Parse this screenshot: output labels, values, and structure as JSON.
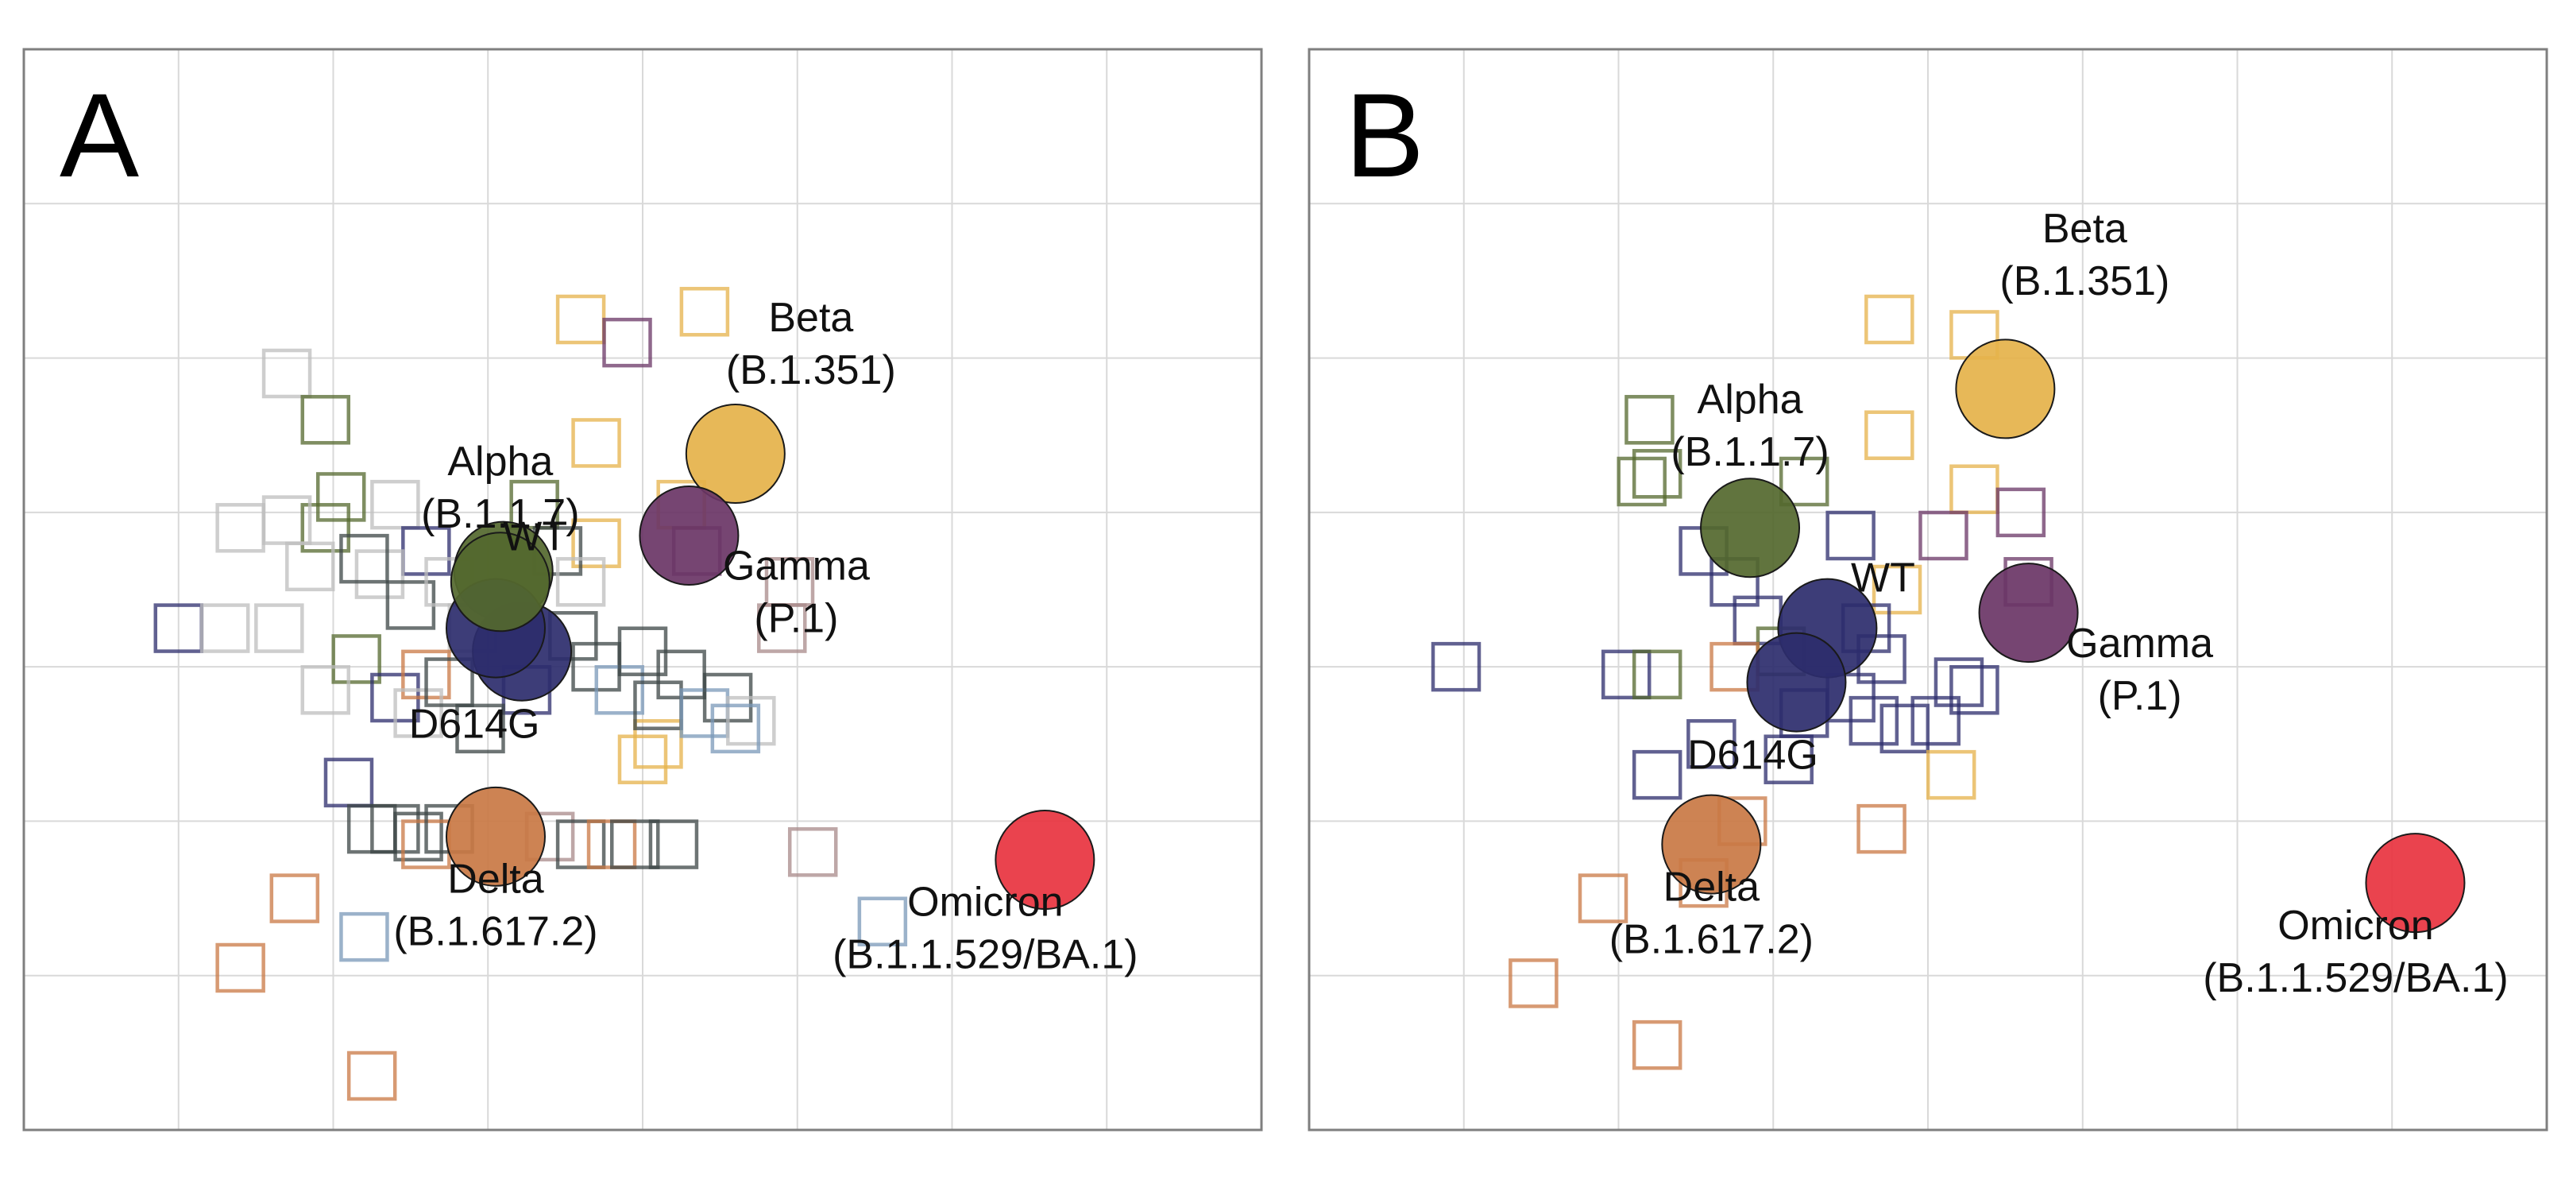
{
  "colors": {
    "grid": "#d9d9d9",
    "frame": "#7f7f7f",
    "WT": "#54682e",
    "D614G": "#2c2c6c",
    "Alpha": "#54682e",
    "Beta": "#e5b24a",
    "Gamma": "#6a3566",
    "Delta": "#c97844",
    "Omicron": "#e8333f",
    "sera_grey": "#bdbdbd",
    "sera_dark": "#3c4646",
    "sera_blue": "#7a98b8"
  },
  "chart_data": [
    {
      "type": "scatter",
      "panel_label": "A",
      "title": "",
      "xlabel": "",
      "ylabel": "",
      "grid": true,
      "legend": "none",
      "xlim": [
        0,
        8
      ],
      "ylim": [
        0,
        7
      ],
      "antigens": [
        {
          "name": "WT",
          "label_lines": [
            "WT"
          ],
          "x": 3.1,
          "y": 3.62,
          "color": "#54682e"
        },
        {
          "name": "D614G",
          "label_lines": [
            "D614G"
          ],
          "x": 3.22,
          "y": 3.1,
          "color": "#2c2c6c"
        },
        {
          "name": "D614G-2",
          "label_lines": [],
          "x": 3.05,
          "y": 3.25,
          "color": "#2c2c6c"
        },
        {
          "name": "Alpha",
          "label_lines": [
            "Alpha",
            "(B.1.1.7)"
          ],
          "x": 3.08,
          "y": 3.55,
          "color": "#54682e"
        },
        {
          "name": "Beta",
          "label_lines": [
            "Beta",
            "(B.1.351)"
          ],
          "x": 4.6,
          "y": 4.38,
          "color": "#e5b24a"
        },
        {
          "name": "Gamma",
          "label_lines": [
            "Gamma",
            "(P.1)"
          ],
          "x": 4.3,
          "y": 3.85,
          "color": "#6a3566"
        },
        {
          "name": "Delta",
          "label_lines": [
            "Delta",
            "(B.1.617.2)"
          ],
          "x": 3.05,
          "y": 1.9,
          "color": "#c97844"
        },
        {
          "name": "Omicron",
          "label_lines": [
            "Omicron",
            "(B.1.1.529/BA.1)"
          ],
          "x": 6.6,
          "y": 1.75,
          "color": "#e8333f"
        }
      ],
      "sera": [
        {
          "x": 3.6,
          "y": 5.25,
          "color": "#e5b24a"
        },
        {
          "x": 4.4,
          "y": 5.3,
          "color": "#e5b24a"
        },
        {
          "x": 3.9,
          "y": 5.1,
          "color": "#6a3566"
        },
        {
          "x": 3.7,
          "y": 4.45,
          "color": "#e5b24a"
        },
        {
          "x": 4.25,
          "y": 4.05,
          "color": "#e5b24a"
        },
        {
          "x": 4.35,
          "y": 3.75,
          "color": "#6a3566"
        },
        {
          "x": 3.7,
          "y": 3.8,
          "color": "#e5b24a"
        },
        {
          "x": 4.95,
          "y": 3.55,
          "color": "#a88a8a"
        },
        {
          "x": 4.9,
          "y": 3.25,
          "color": "#a88a8a"
        },
        {
          "x": 4.1,
          "y": 2.5,
          "color": "#e5b24a"
        },
        {
          "x": 5.1,
          "y": 1.8,
          "color": "#a88a8a"
        },
        {
          "x": 5.55,
          "y": 1.35,
          "color": "#7a98b8"
        },
        {
          "x": 1.7,
          "y": 4.9,
          "color": "#bdbdbd"
        },
        {
          "x": 1.95,
          "y": 4.6,
          "color": "#54682e"
        },
        {
          "x": 2.05,
          "y": 4.1,
          "color": "#54682e"
        },
        {
          "x": 1.95,
          "y": 3.9,
          "color": "#54682e"
        },
        {
          "x": 1.4,
          "y": 3.9,
          "color": "#bdbdbd"
        },
        {
          "x": 1.7,
          "y": 3.95,
          "color": "#bdbdbd"
        },
        {
          "x": 1.0,
          "y": 3.25,
          "color": "#2c2c6c"
        },
        {
          "x": 1.3,
          "y": 3.25,
          "color": "#bdbdbd"
        },
        {
          "x": 1.65,
          "y": 3.25,
          "color": "#bdbdbd"
        },
        {
          "x": 1.85,
          "y": 3.65,
          "color": "#bdbdbd"
        },
        {
          "x": 2.15,
          "y": 3.05,
          "color": "#54682e"
        },
        {
          "x": 1.95,
          "y": 2.85,
          "color": "#bdbdbd"
        },
        {
          "x": 2.4,
          "y": 4.05,
          "color": "#bdbdbd"
        },
        {
          "x": 2.6,
          "y": 3.75,
          "color": "#2c2c6c"
        },
        {
          "x": 2.3,
          "y": 3.6,
          "color": "#bdbdbd"
        },
        {
          "x": 2.5,
          "y": 3.4,
          "color": "#3c4646"
        },
        {
          "x": 2.2,
          "y": 3.7,
          "color": "#3c4646"
        },
        {
          "x": 2.75,
          "y": 3.55,
          "color": "#bdbdbd"
        },
        {
          "x": 2.9,
          "y": 3.25,
          "color": "#bdbdbd"
        },
        {
          "x": 2.4,
          "y": 2.8,
          "color": "#2c2c6c"
        },
        {
          "x": 2.6,
          "y": 2.95,
          "color": "#c97844"
        },
        {
          "x": 2.55,
          "y": 2.7,
          "color": "#bdbdbd"
        },
        {
          "x": 2.75,
          "y": 2.9,
          "color": "#3c4646"
        },
        {
          "x": 3.3,
          "y": 4.05,
          "color": "#54682e"
        },
        {
          "x": 3.45,
          "y": 3.75,
          "color": "#3c4646"
        },
        {
          "x": 3.6,
          "y": 3.55,
          "color": "#bdbdbd"
        },
        {
          "x": 3.55,
          "y": 3.2,
          "color": "#3c4646"
        },
        {
          "x": 3.7,
          "y": 3.0,
          "color": "#3c4646"
        },
        {
          "x": 3.85,
          "y": 2.85,
          "color": "#7a98b8"
        },
        {
          "x": 4.0,
          "y": 3.1,
          "color": "#3c4646"
        },
        {
          "x": 4.1,
          "y": 2.75,
          "color": "#3c4646"
        },
        {
          "x": 4.25,
          "y": 2.95,
          "color": "#3c4646"
        },
        {
          "x": 4.4,
          "y": 2.7,
          "color": "#7a98b8"
        },
        {
          "x": 4.55,
          "y": 2.8,
          "color": "#3c4646"
        },
        {
          "x": 4.7,
          "y": 2.65,
          "color": "#bdbdbd"
        },
        {
          "x": 4.6,
          "y": 2.6,
          "color": "#7a98b8"
        },
        {
          "x": 4.0,
          "y": 2.4,
          "color": "#e5b24a"
        },
        {
          "x": 3.25,
          "y": 2.85,
          "color": "#2c2c6c"
        },
        {
          "x": 2.95,
          "y": 2.6,
          "color": "#3c4646"
        },
        {
          "x": 2.1,
          "y": 2.25,
          "color": "#2c2c6c"
        },
        {
          "x": 2.25,
          "y": 1.95,
          "color": "#3c4646"
        },
        {
          "x": 2.4,
          "y": 1.95,
          "color": "#3c4646"
        },
        {
          "x": 2.55,
          "y": 1.9,
          "color": "#3c4646"
        },
        {
          "x": 2.6,
          "y": 1.85,
          "color": "#c97844"
        },
        {
          "x": 2.75,
          "y": 1.95,
          "color": "#3c4646"
        },
        {
          "x": 3.4,
          "y": 1.9,
          "color": "#a88a8a"
        },
        {
          "x": 3.6,
          "y": 1.85,
          "color": "#3c4646"
        },
        {
          "x": 3.8,
          "y": 1.85,
          "color": "#c97844"
        },
        {
          "x": 3.95,
          "y": 1.85,
          "color": "#3c4646"
        },
        {
          "x": 4.2,
          "y": 1.85,
          "color": "#3c4646"
        },
        {
          "x": 1.75,
          "y": 1.5,
          "color": "#c97844"
        },
        {
          "x": 2.2,
          "y": 1.25,
          "color": "#7a98b8"
        },
        {
          "x": 1.4,
          "y": 1.05,
          "color": "#c97844"
        },
        {
          "x": 2.25,
          "y": 0.35,
          "color": "#c97844"
        }
      ]
    },
    {
      "type": "scatter",
      "panel_label": "B",
      "title": "",
      "xlabel": "",
      "ylabel": "",
      "grid": true,
      "legend": "none",
      "xlim": [
        0,
        8
      ],
      "ylim": [
        0,
        7
      ],
      "antigens": [
        {
          "name": "WT",
          "label_lines": [
            "WT"
          ],
          "x": 3.35,
          "y": 3.25,
          "color": "#2c2c6c"
        },
        {
          "name": "D614G",
          "label_lines": [
            "D614G"
          ],
          "x": 3.15,
          "y": 2.9,
          "color": "#2c2c6c"
        },
        {
          "name": "Alpha",
          "label_lines": [
            "Alpha",
            "(B.1.1.7)"
          ],
          "x": 2.85,
          "y": 3.9,
          "color": "#54682e"
        },
        {
          "name": "Beta",
          "label_lines": [
            "Beta",
            "(B.1.351)"
          ],
          "x": 4.5,
          "y": 4.8,
          "color": "#e5b24a"
        },
        {
          "name": "Gamma",
          "label_lines": [
            "Gamma",
            "(P.1)"
          ],
          "x": 4.65,
          "y": 3.35,
          "color": "#6a3566"
        },
        {
          "name": "Delta",
          "label_lines": [
            "Delta",
            "(B.1.617.2)"
          ],
          "x": 2.6,
          "y": 1.85,
          "color": "#c97844"
        },
        {
          "name": "Omicron",
          "label_lines": [
            "Omicron",
            "(B.1.1.529/BA.1)"
          ],
          "x": 7.15,
          "y": 1.6,
          "color": "#e8333f"
        }
      ],
      "sera": [
        {
          "x": 3.75,
          "y": 5.25,
          "color": "#e5b24a"
        },
        {
          "x": 4.3,
          "y": 5.15,
          "color": "#e5b24a"
        },
        {
          "x": 3.75,
          "y": 4.5,
          "color": "#e5b24a"
        },
        {
          "x": 4.3,
          "y": 4.15,
          "color": "#e5b24a"
        },
        {
          "x": 4.6,
          "y": 4.0,
          "color": "#6a3566"
        },
        {
          "x": 4.1,
          "y": 3.85,
          "color": "#6a3566"
        },
        {
          "x": 4.65,
          "y": 3.55,
          "color": "#6a3566"
        },
        {
          "x": 3.8,
          "y": 3.5,
          "color": "#e5b24a"
        },
        {
          "x": 2.2,
          "y": 4.6,
          "color": "#54682e"
        },
        {
          "x": 2.15,
          "y": 4.2,
          "color": "#54682e"
        },
        {
          "x": 2.25,
          "y": 4.25,
          "color": "#54682e"
        },
        {
          "x": 3.2,
          "y": 4.2,
          "color": "#54682e"
        },
        {
          "x": 3.5,
          "y": 3.85,
          "color": "#2c2c6c"
        },
        {
          "x": 2.55,
          "y": 3.75,
          "color": "#2c2c6c"
        },
        {
          "x": 2.75,
          "y": 3.55,
          "color": "#2c2c6c"
        },
        {
          "x": 2.9,
          "y": 3.3,
          "color": "#2c2c6c"
        },
        {
          "x": 3.05,
          "y": 3.1,
          "color": "#54682e"
        },
        {
          "x": 3.6,
          "y": 3.25,
          "color": "#2c2c6c"
        },
        {
          "x": 3.7,
          "y": 3.05,
          "color": "#2c2c6c"
        },
        {
          "x": 0.95,
          "y": 3.0,
          "color": "#2c2c6c"
        },
        {
          "x": 2.05,
          "y": 2.95,
          "color": "#2c2c6c"
        },
        {
          "x": 2.25,
          "y": 2.95,
          "color": "#54682e"
        },
        {
          "x": 2.75,
          "y": 3.0,
          "color": "#c97844"
        },
        {
          "x": 3.2,
          "y": 2.7,
          "color": "#2c2c6c"
        },
        {
          "x": 3.5,
          "y": 2.8,
          "color": "#2c2c6c"
        },
        {
          "x": 3.65,
          "y": 2.65,
          "color": "#2c2c6c"
        },
        {
          "x": 3.85,
          "y": 2.6,
          "color": "#2c2c6c"
        },
        {
          "x": 4.05,
          "y": 2.65,
          "color": "#2c2c6c"
        },
        {
          "x": 4.2,
          "y": 2.9,
          "color": "#2c2c6c"
        },
        {
          "x": 4.3,
          "y": 2.85,
          "color": "#2c2c6c"
        },
        {
          "x": 2.6,
          "y": 2.5,
          "color": "#2c2c6c"
        },
        {
          "x": 3.1,
          "y": 2.4,
          "color": "#2c2c6c"
        },
        {
          "x": 2.25,
          "y": 2.3,
          "color": "#2c2c6c"
        },
        {
          "x": 4.15,
          "y": 2.3,
          "color": "#e5b24a"
        },
        {
          "x": 2.8,
          "y": 2.0,
          "color": "#c97844"
        },
        {
          "x": 3.7,
          "y": 1.95,
          "color": "#c97844"
        },
        {
          "x": 1.9,
          "y": 1.5,
          "color": "#c97844"
        },
        {
          "x": 2.55,
          "y": 1.6,
          "color": "#c97844"
        },
        {
          "x": 1.45,
          "y": 0.95,
          "color": "#c97844"
        },
        {
          "x": 2.25,
          "y": 0.55,
          "color": "#c97844"
        }
      ]
    }
  ]
}
